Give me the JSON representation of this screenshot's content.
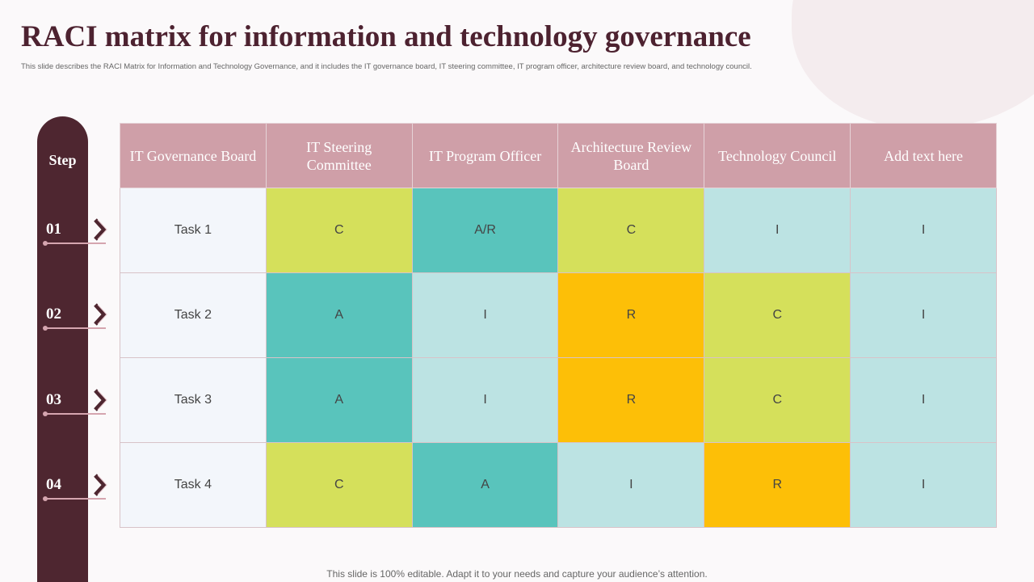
{
  "title": "RACI matrix for information and technology governance",
  "subtitle": "This slide describes the RACI Matrix for Information and Technology Governance, and it includes the IT  governance board, IT steering committee,  IT  program officer, architecture review board, and technology council.",
  "step_label": "Step",
  "steps": [
    "01",
    "02",
    "03",
    "04"
  ],
  "headers": [
    "IT Governance Board",
    "IT Steering Committee",
    "IT Program Officer",
    "Architecture Review Board",
    "Technology Council",
    "Add text here"
  ],
  "rows": [
    {
      "task": "Task 1",
      "cells": [
        "C",
        "A/R",
        "C",
        "I",
        "I"
      ]
    },
    {
      "task": "Task 2",
      "cells": [
        "A",
        "I",
        "R",
        "C",
        "I"
      ]
    },
    {
      "task": "Task 3",
      "cells": [
        "A",
        "I",
        "R",
        "C",
        "I"
      ]
    },
    {
      "task": "Task 4",
      "cells": [
        "C",
        "A",
        "I",
        "R",
        "I"
      ]
    }
  ],
  "colors": {
    "C": "#d5e05b",
    "A": "#59c4bc",
    "A/R": "#59c4bc",
    "I": "#bce3e3",
    "R": "#fdbf07",
    "header": "#cf9fa8",
    "step_bar": "#4e2630"
  },
  "footer": "This slide is 100% editable. Adapt it to your needs and capture your audience’s attention."
}
